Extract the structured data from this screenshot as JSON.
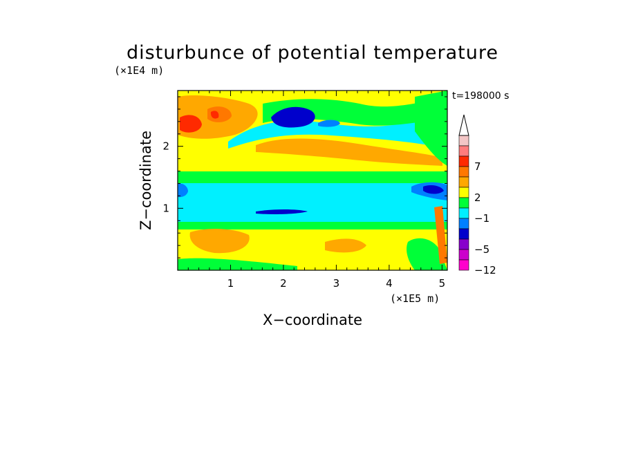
{
  "chart_data": {
    "type": "heatmap",
    "title": "disturbunce of potential temperature",
    "time_label": "t=198000 s",
    "xlabel": "X−coordinate",
    "ylabel": "Z−coordinate",
    "x_unit": "(×1E5 m)",
    "y_unit": "(×1E4 m)",
    "xlim": [
      0,
      5.1
    ],
    "ylim": [
      0,
      2.9
    ],
    "x_ticks": [
      "1",
      "2",
      "3",
      "4",
      "5"
    ],
    "y_ticks": [
      "1",
      "2"
    ],
    "colorbar": {
      "labels": [
        "7",
        "2",
        "−1",
        "−5",
        "−12"
      ],
      "colors": [
        "#ffffff",
        "#f3c6c6",
        "#ff7c7c",
        "#ff2a00",
        "#ff7800",
        "#ffa800",
        "#ffff00",
        "#00ff38",
        "#00f0ff",
        "#0080ff",
        "#0000cc",
        "#8800cc",
        "#cc00cc",
        "#ff00cc"
      ],
      "extend": "max"
    },
    "field_bands": [
      {
        "z_range": [
          0.0,
          0.75
        ],
        "level": "warm",
        "description_colors": [
          "#ffff00",
          "#ffa800"
        ]
      },
      {
        "z_range": [
          0.75,
          0.9
        ],
        "level": "neutral",
        "description_colors": [
          "#00ff38"
        ]
      },
      {
        "z_range": [
          0.9,
          1.5
        ],
        "level": "cold",
        "description_colors": [
          "#00f0ff",
          "#0080ff"
        ]
      },
      {
        "z_range": [
          1.5,
          1.7
        ],
        "level": "neutral",
        "description_colors": [
          "#00ff38"
        ]
      },
      {
        "z_range": [
          1.7,
          2.3
        ],
        "level": "warm",
        "description_colors": [
          "#ffff00",
          "#ffa800"
        ]
      },
      {
        "z_range": [
          2.3,
          2.6
        ],
        "level": "cool",
        "description_colors": [
          "#00f0ff",
          "#0000cc"
        ]
      },
      {
        "z_range": [
          2.6,
          2.9
        ],
        "level": "warm",
        "description_colors": [
          "#ffff00",
          "#ffa800",
          "#ff2a00"
        ]
      }
    ]
  }
}
